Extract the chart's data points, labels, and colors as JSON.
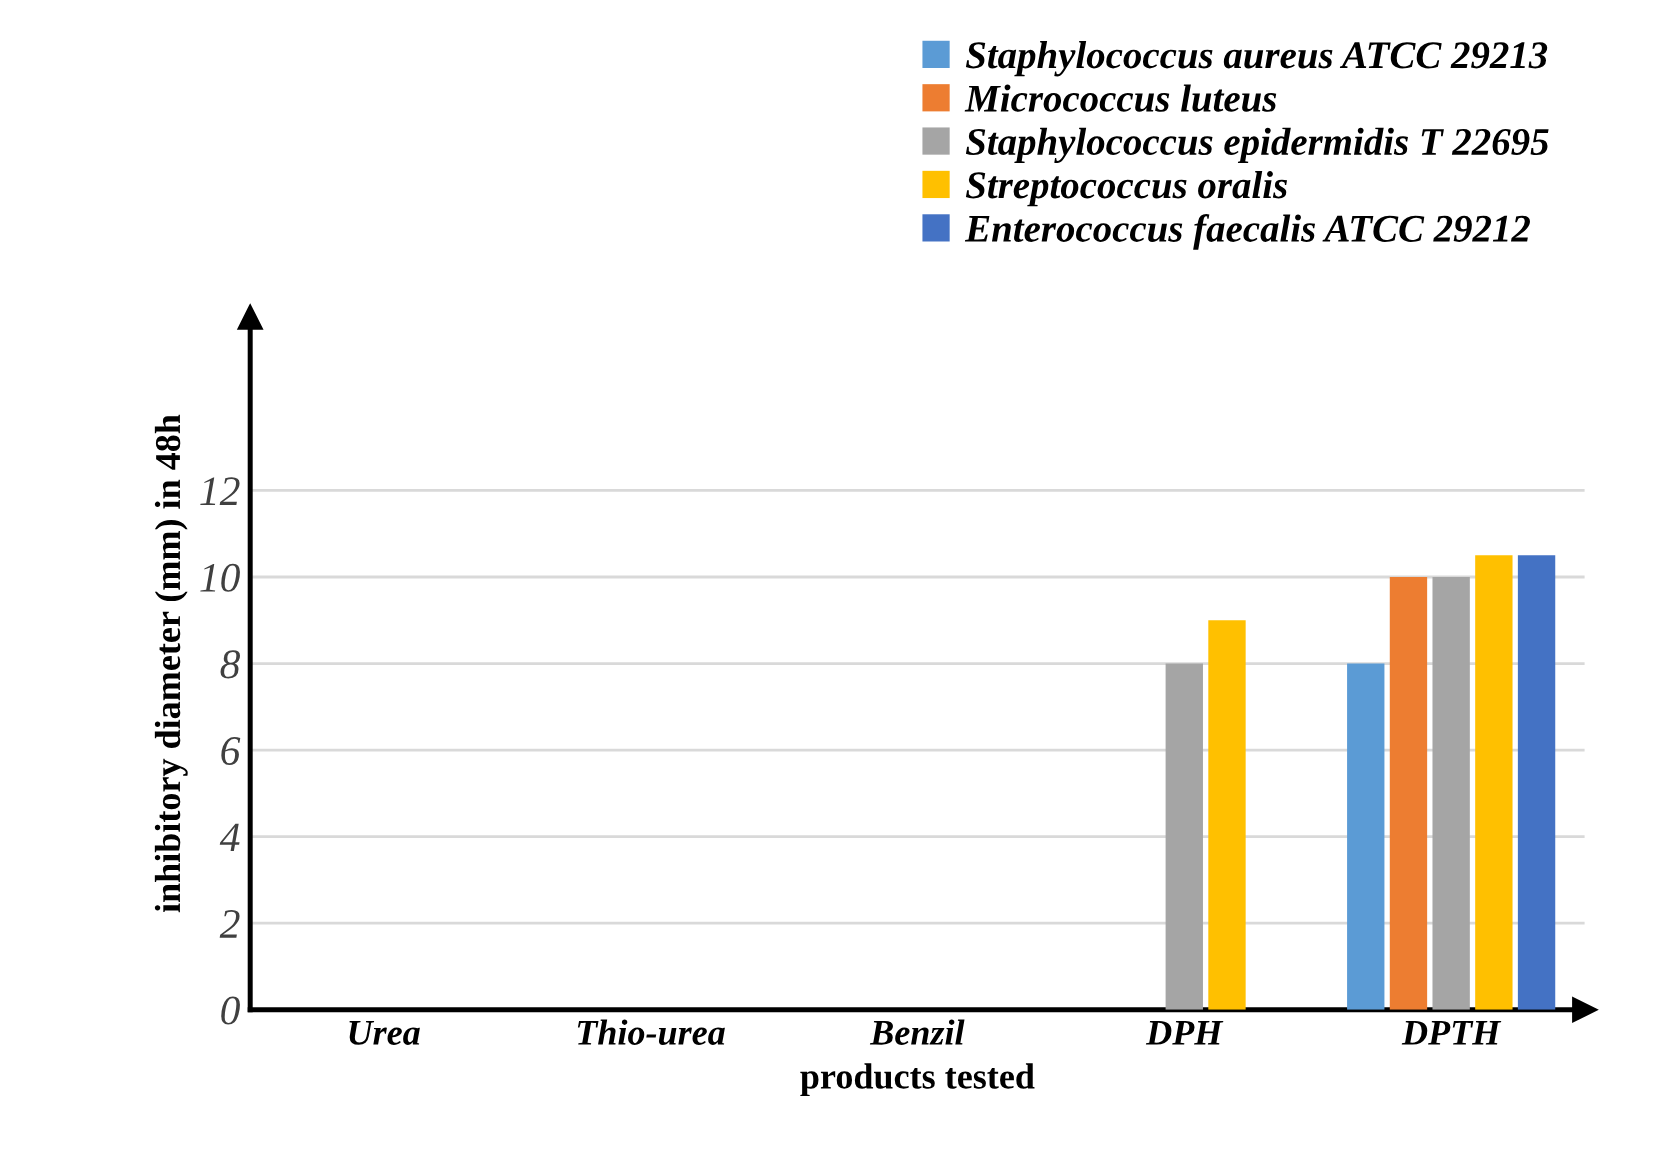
{
  "chart_data": {
    "type": "bar",
    "xlabel": "products tested",
    "ylabel": "inhibitory diameter (mm) in 48h",
    "categories": [
      "Urea",
      "Thio-urea",
      "Benzil",
      "DPH",
      "DPTH"
    ],
    "series": [
      {
        "name": "Staphylococcus aureus ATCC 29213",
        "color": "#5b9bd5",
        "values": [
          0,
          0,
          0,
          0,
          8
        ]
      },
      {
        "name": "Micrococcus luteus",
        "color": "#ed7d31",
        "values": [
          0,
          0,
          0,
          0,
          10
        ]
      },
      {
        "name": "Staphylococcus epidermidis T 22695",
        "color": "#a5a5a5",
        "values": [
          0,
          0,
          0,
          8,
          10
        ]
      },
      {
        "name": "Streptococcus oralis",
        "color": "#ffc000",
        "values": [
          0,
          0,
          0,
          9,
          10.5
        ]
      },
      {
        "name": "Enterococcus faecalis ATCC 29212",
        "color": "#4472c4",
        "values": [
          0,
          0,
          0,
          0,
          10.5
        ]
      }
    ],
    "ylim": [
      0,
      16
    ],
    "yticks": [
      0,
      2,
      4,
      6,
      8,
      10,
      12
    ],
    "grid": "y",
    "legend": "top right"
  }
}
